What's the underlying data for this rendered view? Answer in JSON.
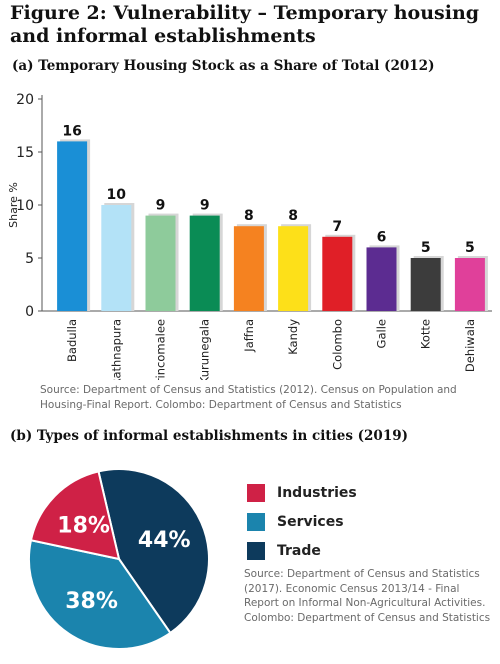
{
  "figure_title": "Figure 2: Vulnerability – Temporary housing and informal establishments",
  "chart_data": [
    {
      "type": "bar",
      "title": "(a) Temporary Housing Stock as a Share of Total (2012)",
      "ylabel": "Share %",
      "xlabel": "",
      "ylim": [
        0,
        20
      ],
      "yticks": [
        0,
        5,
        10,
        15,
        20
      ],
      "categories": [
        "Badulla",
        "Rathnapura",
        "Trincomalee",
        "Kurunegala",
        "Jaffna",
        "Kandy",
        "Colombo",
        "Galle",
        "Kotte",
        "Dehiwala"
      ],
      "values": [
        16,
        10,
        9,
        9,
        8,
        8,
        7,
        6,
        5,
        5
      ],
      "colors": [
        "#1a8fd6",
        "#b3e2f7",
        "#8ecb9b",
        "#0a8c55",
        "#f58220",
        "#fde019",
        "#e01f27",
        "#5c2c91",
        "#3c3c3c",
        "#e0409a"
      ],
      "source": "Source: Department of Census and Statistics (2012). Census on Population and Housing-Final Report. Colombo: Department of Census and Statistics"
    },
    {
      "type": "pie",
      "title": "(b) Types of informal establishments in cities (2019)",
      "slices": [
        {
          "label": "Industries",
          "value": 18,
          "display": "18%",
          "color": "#cf2146"
        },
        {
          "label": "Services",
          "value": 38,
          "display": "38%",
          "color": "#1b84ad"
        },
        {
          "label": "Trade",
          "value": 44,
          "display": "44%",
          "color": "#0d3a5c"
        }
      ],
      "legend_placement": "right",
      "source": "Source: Department of Census and Statistics (2017). Economic Census 2013/14 - Final Report on Informal Non-Agricultural Activities. Colombo: Department of Census and Statistics"
    }
  ]
}
